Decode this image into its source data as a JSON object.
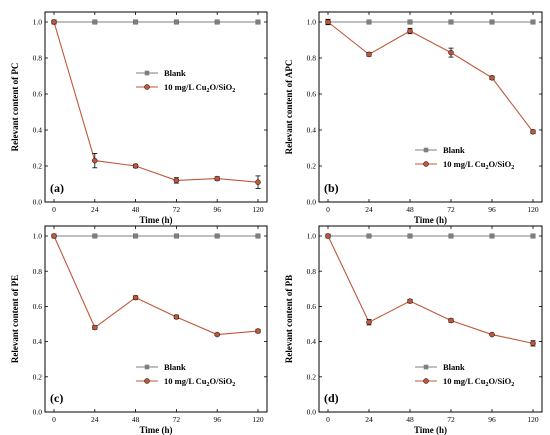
{
  "colors": {
    "blank": "#7f7f7f",
    "treated": "#c0573a"
  },
  "chart_data": [
    {
      "type": "line",
      "panel_label": "(a)",
      "xlabel": "Time (h)",
      "ylabel": "Relevant content of PC",
      "x": [
        0,
        24,
        48,
        72,
        96,
        120
      ],
      "xlim": [
        0,
        120
      ],
      "ylim": [
        0,
        1.0
      ],
      "yticks": [
        "0.0",
        "0.2",
        "0.4",
        "0.6",
        "0.8",
        "1.0"
      ],
      "xticks": [
        "0",
        "24",
        "48",
        "72",
        "96",
        "120"
      ],
      "legend_position": "middle-right",
      "legend": [
        "Blank",
        "10 mg/L Cu",
        "2",
        "O/SiO",
        "2"
      ],
      "series": [
        {
          "name": "Blank",
          "values": [
            1.0,
            1.0,
            1.0,
            1.0,
            1.0,
            1.0
          ],
          "errors": [
            0,
            0,
            0,
            0,
            0,
            0
          ]
        },
        {
          "name": "10 mg/L Cu2O/SiO2",
          "values": [
            1.0,
            0.23,
            0.2,
            0.12,
            0.13,
            0.11
          ],
          "errors": [
            0.01,
            0.04,
            0.01,
            0.015,
            0.01,
            0.035
          ]
        }
      ]
    },
    {
      "type": "line",
      "panel_label": "(b)",
      "xlabel": "Time (h)",
      "ylabel": "Relevant content of APC",
      "x": [
        0,
        24,
        48,
        72,
        96,
        120
      ],
      "xlim": [
        0,
        120
      ],
      "ylim": [
        0,
        1.0
      ],
      "yticks": [
        "0.0",
        "0.2",
        "0.4",
        "0.6",
        "0.8",
        "1.0"
      ],
      "xticks": [
        "0",
        "24",
        "48",
        "72",
        "96",
        "120"
      ],
      "legend_position": "bottom-right",
      "legend": [
        "Blank",
        "10 mg/L Cu",
        "2",
        "O/SiO",
        "2"
      ],
      "series": [
        {
          "name": "Blank",
          "values": [
            1.0,
            1.0,
            1.0,
            1.0,
            1.0,
            1.0
          ],
          "errors": [
            0,
            0,
            0,
            0,
            0,
            0
          ]
        },
        {
          "name": "10 mg/L Cu2O/SiO2",
          "values": [
            1.0,
            0.82,
            0.95,
            0.83,
            0.69,
            0.39
          ],
          "errors": [
            0.015,
            0.01,
            0.015,
            0.025,
            0.01,
            0.01
          ]
        }
      ]
    },
    {
      "type": "line",
      "panel_label": "(c)",
      "xlabel": "Time (h)",
      "ylabel": "Relevant content of PE",
      "x": [
        0,
        24,
        48,
        72,
        96,
        120
      ],
      "xlim": [
        0,
        120
      ],
      "ylim": [
        0,
        1.0
      ],
      "yticks": [
        "0.0",
        "0.2",
        "0.4",
        "0.6",
        "0.8",
        "1.0"
      ],
      "xticks": [
        "0",
        "24",
        "48",
        "72",
        "96",
        "120"
      ],
      "legend_position": "bottom-right",
      "legend": [
        "Blank",
        "10 mg/L Cu",
        "2",
        "O/SiO",
        "2"
      ],
      "series": [
        {
          "name": "Blank",
          "values": [
            1.0,
            1.0,
            1.0,
            1.0,
            1.0,
            1.0
          ],
          "errors": [
            0,
            0,
            0,
            0,
            0,
            0
          ]
        },
        {
          "name": "10 mg/L Cu2O/SiO2",
          "values": [
            1.0,
            0.48,
            0.65,
            0.54,
            0.44,
            0.46
          ],
          "errors": [
            0.005,
            0.01,
            0.01,
            0.01,
            0.005,
            0.01
          ]
        }
      ]
    },
    {
      "type": "line",
      "panel_label": "(d)",
      "xlabel": "Time (h)",
      "ylabel": "Relevant content of PB",
      "x": [
        0,
        24,
        48,
        72,
        96,
        120
      ],
      "xlim": [
        0,
        120
      ],
      "ylim": [
        0,
        1.0
      ],
      "yticks": [
        "0.0",
        "0.2",
        "0.4",
        "0.6",
        "0.8",
        "1.0"
      ],
      "xticks": [
        "0",
        "24",
        "48",
        "72",
        "96",
        "120"
      ],
      "legend_position": "bottom-right",
      "legend": [
        "Blank",
        "10 mg/L Cu",
        "2",
        "O/SiO",
        "2"
      ],
      "series": [
        {
          "name": "Blank",
          "values": [
            1.0,
            1.0,
            1.0,
            1.0,
            1.0,
            1.0
          ],
          "errors": [
            0,
            0,
            0,
            0,
            0,
            0
          ]
        },
        {
          "name": "10 mg/L Cu2O/SiO2",
          "values": [
            1.0,
            0.51,
            0.63,
            0.52,
            0.44,
            0.39
          ],
          "errors": [
            0.005,
            0.015,
            0.01,
            0.01,
            0.005,
            0.015
          ]
        }
      ]
    }
  ]
}
